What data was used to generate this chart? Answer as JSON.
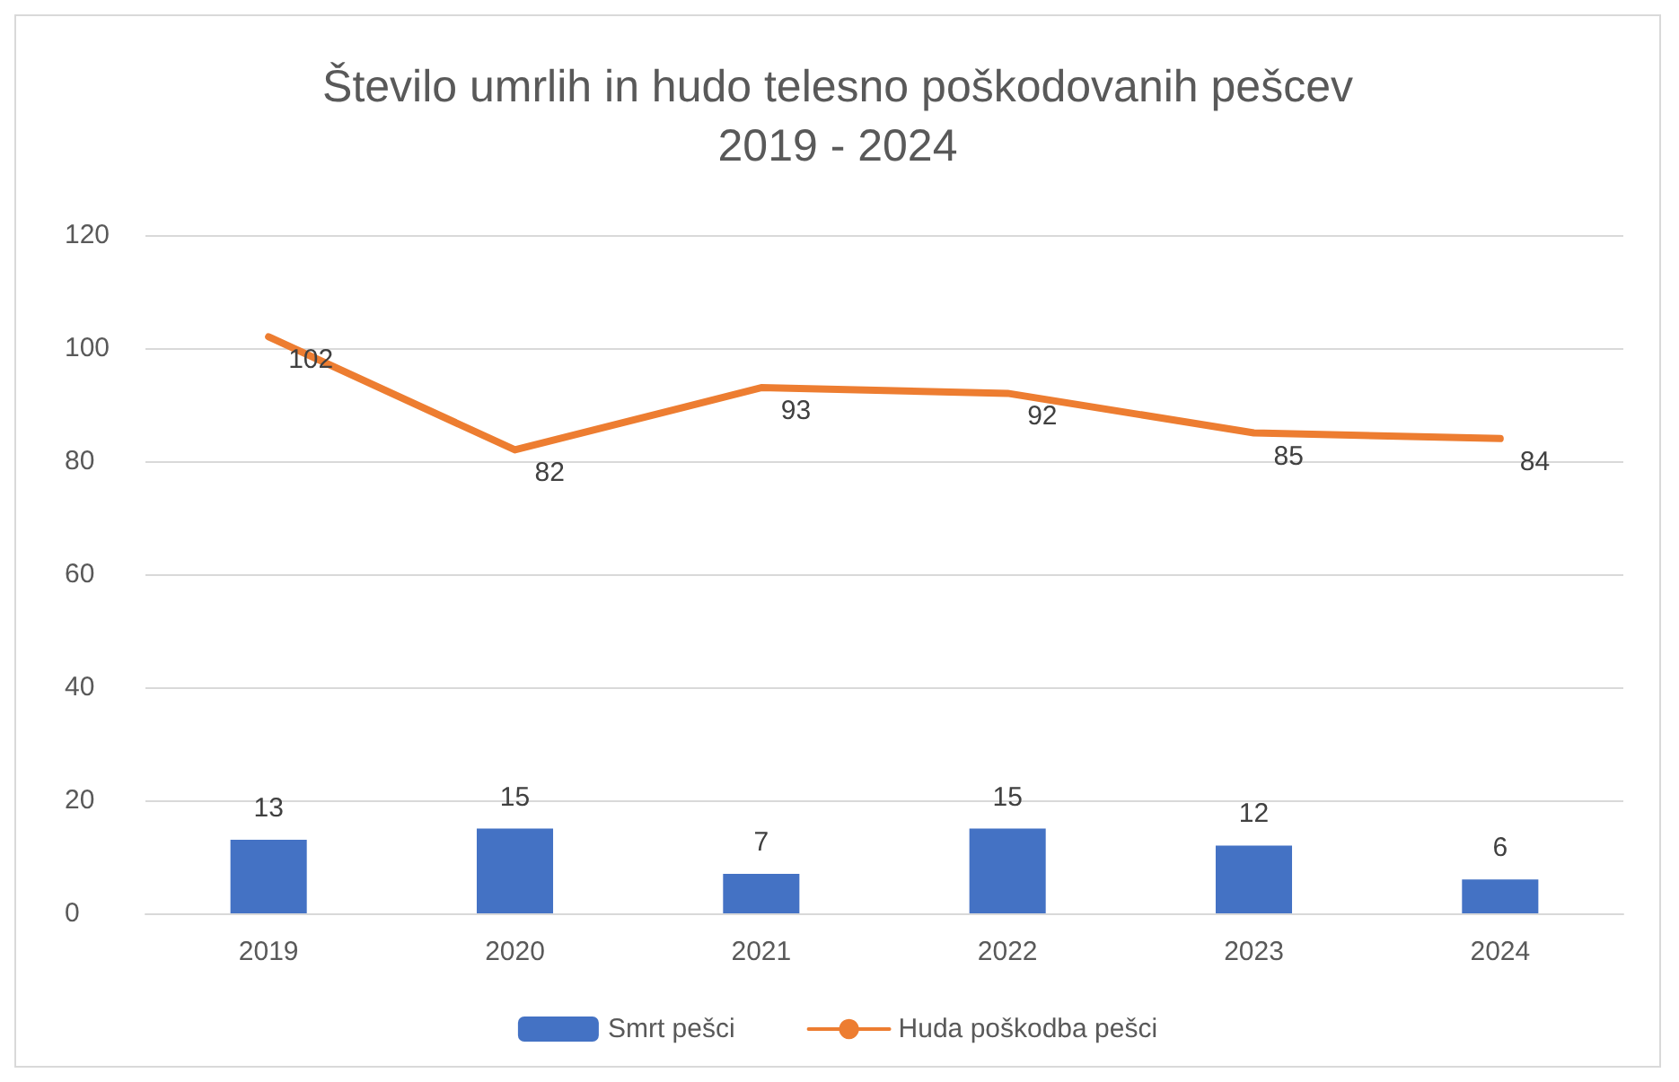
{
  "chart_data": {
    "type": "bar",
    "title": "Število umrlih in hudo telesno poškodovanih pešcev",
    "subtitle": "2019 - 2024",
    "categories": [
      "2019",
      "2020",
      "2021",
      "2022",
      "2023",
      "2024"
    ],
    "series": [
      {
        "name": "Smrt pešci",
        "color": "#4472c4",
        "values": [
          13,
          15,
          7,
          15,
          12,
          6
        ]
      },
      {
        "name": "Huda poškodba pešci",
        "type": "line",
        "color": "#ed7d31",
        "values": [
          102,
          82,
          93,
          92,
          85,
          84
        ]
      }
    ],
    "ylim": [
      0,
      120
    ],
    "yticks": [
      0,
      20,
      40,
      60,
      80,
      100,
      120
    ],
    "grid": "y",
    "legend": "bottom",
    "data_labels": true,
    "marker": "none",
    "line_style": "solid"
  }
}
